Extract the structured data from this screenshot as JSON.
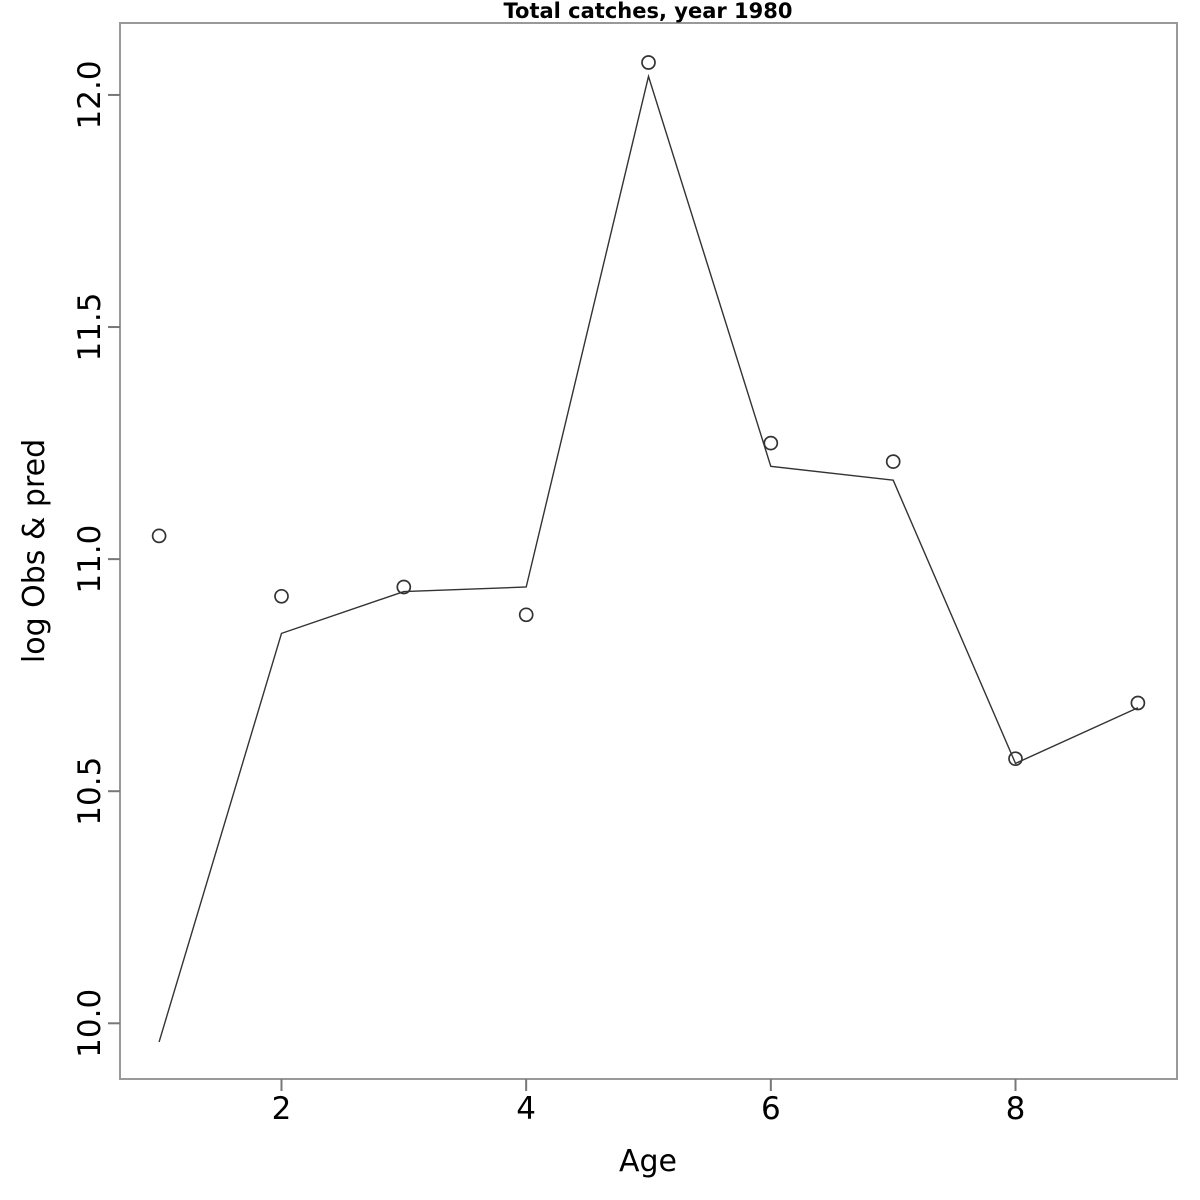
{
  "chart_data": {
    "type": "line",
    "title": "Total catches, year 1980",
    "xlabel": "Age",
    "ylabel": "log Obs & pred",
    "x": [
      1,
      2,
      3,
      4,
      5,
      6,
      7,
      8,
      9
    ],
    "series": [
      {
        "name": "observed",
        "style": "open-circle-points",
        "values": [
          11.05,
          10.92,
          10.94,
          10.88,
          12.07,
          11.25,
          11.21,
          10.57,
          10.69
        ]
      },
      {
        "name": "predicted",
        "style": "solid-line",
        "values": [
          9.96,
          10.84,
          10.93,
          10.94,
          12.04,
          11.2,
          11.17,
          10.56,
          10.68
        ]
      }
    ],
    "x_ticks": [
      {
        "value": 2,
        "label": "2"
      },
      {
        "value": 4,
        "label": "4"
      },
      {
        "value": 6,
        "label": "6"
      },
      {
        "value": 8,
        "label": "8"
      }
    ],
    "y_ticks": [
      {
        "value": 10.0,
        "label": "10.0"
      },
      {
        "value": 10.5,
        "label": "10.5"
      },
      {
        "value": 11.0,
        "label": "11.0"
      },
      {
        "value": 11.5,
        "label": "11.5"
      },
      {
        "value": 12.0,
        "label": "12.0"
      }
    ],
    "xlim": [
      0.68,
      9.32
    ],
    "ylim": [
      9.88,
      12.155
    ],
    "grid": false,
    "legend": "none",
    "colors": {
      "line": "#333333",
      "point_stroke": "#333333",
      "box": "#999999",
      "tick": "#777777",
      "text": "#000000"
    }
  }
}
